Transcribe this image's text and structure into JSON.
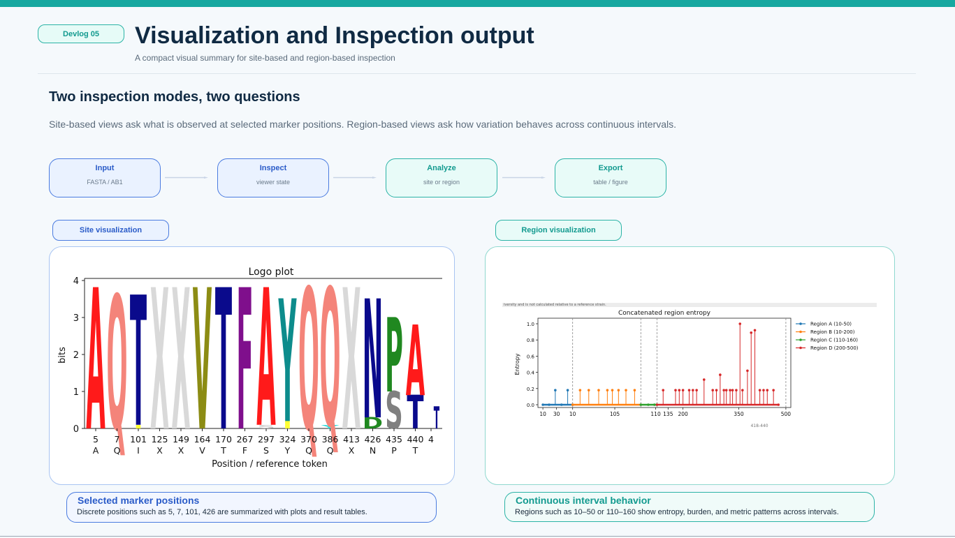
{
  "header": {
    "badge": "Devlog 05",
    "title": "Visualization and Inspection output",
    "subtitle": "A compact visual summary for site-based and region-based inspection"
  },
  "section": {
    "title": "Two inspection modes, two questions",
    "description": "Site-based views ask what is observed at selected marker positions. Region-based views ask how variation behaves across continuous intervals."
  },
  "flow": [
    {
      "label": "Input",
      "sub": "FASTA / AB1"
    },
    {
      "label": "Inspect",
      "sub": "viewer state"
    },
    {
      "label": "Analyze",
      "sub": "site or region"
    },
    {
      "label": "Export",
      "sub": "table / figure"
    }
  ],
  "tabs": {
    "site": "Site visualization",
    "region": "Region visualization"
  },
  "captions": {
    "site_title": "Selected marker positions",
    "site_text": "Discrete positions such as 5, 7, 101, 426 are summarized with plots and result tables.",
    "region_title": "Continuous interval behavior",
    "region_text": "Regions such as 10–50 or 110–160 show entropy, burden, and metric patterns across intervals."
  },
  "colors": {
    "accent_teal": "#17a8a0",
    "accent_blue": "#2a5bc8",
    "title_dark": "#102a43"
  },
  "chart_data": [
    {
      "type": "bar",
      "title": "Logo plot",
      "xlabel": "Position / reference token",
      "ylabel": "bits",
      "ylim": [
        0,
        4
      ],
      "yticks": [
        0,
        1,
        2,
        3,
        4
      ],
      "positions": [
        "5",
        "7",
        "101",
        "125",
        "149",
        "164",
        "170",
        "267",
        "297",
        "324",
        "370",
        "386",
        "413",
        "426",
        "435",
        "440",
        "4"
      ],
      "tokens": [
        "A",
        "Q",
        "I",
        "X",
        "X",
        "V",
        "T",
        "F",
        "S",
        "Y",
        "Q",
        "Q",
        "X",
        "N",
        "P",
        "T",
        ""
      ],
      "stacks": [
        [
          {
            "letter": "A",
            "height": 3.8,
            "color": "#ff1a1a"
          }
        ],
        [
          {
            "letter": "Q",
            "height": 3.6,
            "color": "#f4847a"
          }
        ],
        [
          {
            "letter": "T",
            "height": 3.5,
            "color": "#0a0a8c"
          },
          {
            "letter": "I",
            "height": 0.1,
            "color": "#ffff33"
          }
        ],
        [
          {
            "letter": "X",
            "height": 3.8,
            "color": "#d9d9d9"
          }
        ],
        [
          {
            "letter": "X",
            "height": 3.8,
            "color": "#d9d9d9"
          }
        ],
        [
          {
            "letter": "V",
            "height": 3.8,
            "color": "#8c8c14"
          }
        ],
        [
          {
            "letter": "T",
            "height": 3.8,
            "color": "#0a0a8c"
          }
        ],
        [
          {
            "letter": "F",
            "height": 3.8,
            "color": "#7f0f8c"
          }
        ],
        [
          {
            "letter": "A",
            "height": 3.7,
            "color": "#ff1a1a"
          },
          {
            "letter": "S",
            "height": 0.1,
            "color": "#d0d0d0"
          }
        ],
        [
          {
            "letter": "Y",
            "height": 3.3,
            "color": "#0d8c8c"
          },
          {
            "letter": "I",
            "height": 0.2,
            "color": "#ffff33"
          }
        ],
        [
          {
            "letter": "Q",
            "height": 3.8,
            "color": "#f4847a"
          }
        ],
        [
          {
            "letter": "Q",
            "height": 3.7,
            "color": "#f4847a"
          },
          {
            "letter": "Y",
            "height": 0.1,
            "color": "#33dddd"
          }
        ],
        [
          {
            "letter": "X",
            "height": 3.8,
            "color": "#d9d9d9"
          }
        ],
        [
          {
            "letter": "N",
            "height": 3.2,
            "color": "#0a0a8c"
          },
          {
            "letter": "D",
            "height": 0.3,
            "color": "#208820"
          }
        ],
        [
          {
            "letter": "P",
            "height": 2.0,
            "color": "#208820"
          },
          {
            "letter": "S",
            "height": 1.0,
            "color": "#808080"
          }
        ],
        [
          {
            "letter": "A",
            "height": 1.9,
            "color": "#ff1a1a"
          },
          {
            "letter": "T",
            "height": 0.9,
            "color": "#0a0a8c"
          }
        ],
        [
          {
            "letter": "T",
            "height": 0.6,
            "color": "#0a0a8c"
          }
        ]
      ]
    },
    {
      "type": "line",
      "title": "Concatenated region entropy",
      "top_text": "iversity and is not calculated relative to a reference strain.",
      "xlabel": "",
      "ylabel": "Entropy",
      "ylim": [
        0,
        1.05
      ],
      "yticks": [
        "0.0",
        "0.2",
        "0.4",
        "0.6",
        "0.8",
        "1.0"
      ],
      "xticks": [
        "10",
        "30",
        "10",
        "105",
        "110",
        "135",
        "200",
        "350",
        "500"
      ],
      "xtick_offset_label": "418-440",
      "legend_position": "upper-right outside",
      "series": [
        {
          "name": "Region A (10-50)",
          "color": "#1f77b4",
          "x": [
            0,
            5,
            10,
            15,
            20,
            24
          ],
          "y": [
            0,
            0,
            0.18,
            0,
            0.18,
            0
          ]
        },
        {
          "name": "Region B (10-200)",
          "color": "#ff7f0e",
          "x": [
            24,
            30,
            37,
            45,
            52,
            56,
            61,
            67,
            74,
            79
          ],
          "y": [
            0,
            0.18,
            0.18,
            0.18,
            0.18,
            0.18,
            0.18,
            0.18,
            0.18,
            0
          ]
        },
        {
          "name": "Region C (110-160)",
          "color": "#2ca02c",
          "x": [
            79,
            85,
            90,
            92
          ],
          "y": [
            0,
            0,
            0,
            0
          ]
        },
        {
          "name": "Region D (200-500)",
          "color": "#d62728",
          "x": [
            92,
            97,
            107,
            110,
            113,
            118,
            121,
            124,
            130,
            137,
            140,
            143,
            146,
            148,
            151,
            153,
            156,
            159,
            161,
            165,
            168,
            171,
            175,
            178,
            181,
            186,
            190
          ],
          "y": [
            0,
            0.18,
            0.18,
            0.18,
            0.18,
            0.18,
            0.18,
            0.18,
            0.31,
            0.18,
            0.18,
            0.37,
            0.18,
            0.18,
            0.18,
            0.18,
            0.18,
            1.0,
            0.18,
            0.42,
            0.89,
            0.92,
            0.18,
            0.18,
            0.18,
            0.18,
            0
          ]
        }
      ]
    }
  ]
}
